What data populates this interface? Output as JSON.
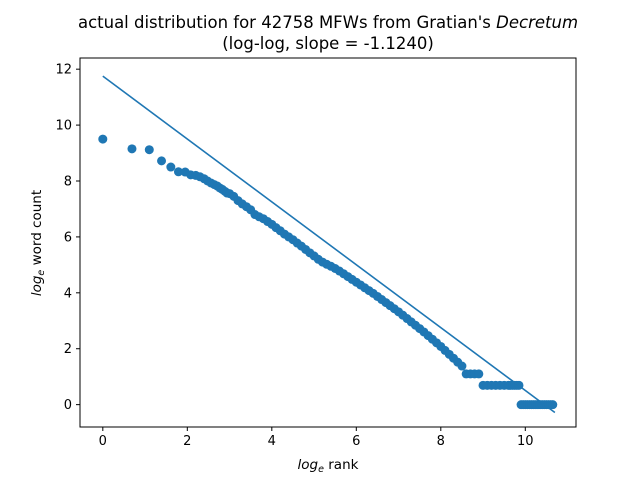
{
  "figure": {
    "title_line1_prefix": "actual distribution for 42758 MFWs from Gratian's ",
    "title_line1_italic": "Decretum",
    "title_line2": "(log-log, slope = -1.1240)",
    "xlabel_log": "log",
    "xlabel_sub": "e",
    "xlabel_rest": " rank",
    "ylabel_log": "log",
    "ylabel_sub": "e",
    "ylabel_rest": " word count"
  },
  "colors": {
    "series": "#1f77b4",
    "axes": "#000000",
    "background": "#ffffff"
  },
  "chart_data": {
    "type": "scatter",
    "title": "actual distribution for 42758 MFWs from Gratian's Decretum (log-log, slope = -1.1240)",
    "xlabel": "log_e rank",
    "ylabel": "log_e word count",
    "xlim": [
      -0.54,
      11.2
    ],
    "ylim": [
      -0.8,
      12.4
    ],
    "xticks": [
      0,
      2,
      4,
      6,
      8,
      10
    ],
    "yticks": [
      0,
      2,
      4,
      6,
      8,
      10,
      12
    ],
    "grid": false,
    "legend": "none",
    "series": [
      {
        "kind": "points",
        "x": [
          0,
          0.69,
          1.1,
          1.39,
          1.61,
          1.79,
          1.95,
          2.08,
          2.2,
          2.3,
          2.4,
          2.48,
          2.56,
          2.64,
          2.71,
          2.77,
          2.83,
          2.89,
          2.94,
          3.0,
          3.1,
          3.2,
          3.3,
          3.4,
          3.5,
          3.6,
          3.7,
          3.8,
          3.9,
          4.0,
          4.1,
          4.2,
          4.3,
          4.4,
          4.5,
          4.6,
          4.7,
          4.8,
          4.9,
          5.0,
          5.1,
          5.2,
          5.3,
          5.4,
          5.5,
          5.6,
          5.7,
          5.8,
          5.9,
          6.0,
          6.1,
          6.2,
          6.3,
          6.4,
          6.5,
          6.6,
          6.7,
          6.8,
          6.9,
          7.0,
          7.1,
          7.2,
          7.3,
          7.4,
          7.5,
          7.6,
          7.7,
          7.8,
          7.9,
          8.0,
          8.1,
          8.2,
          8.3,
          8.4,
          8.5,
          8.6,
          8.7,
          8.8,
          8.9,
          9.0,
          9.1,
          9.2,
          9.3,
          9.4,
          9.5,
          9.6,
          9.65,
          9.7,
          9.75,
          9.8,
          9.85,
          9.9,
          9.95,
          10.0,
          10.05,
          10.1,
          10.15,
          10.2,
          10.25,
          10.3,
          10.35,
          10.4,
          10.45,
          10.5,
          10.55,
          10.6,
          10.65
        ],
        "y": [
          9.5,
          9.15,
          9.12,
          8.72,
          8.5,
          8.33,
          8.32,
          8.22,
          8.2,
          8.15,
          8.08,
          8.0,
          7.93,
          7.87,
          7.82,
          7.75,
          7.7,
          7.63,
          7.57,
          7.55,
          7.45,
          7.3,
          7.18,
          7.08,
          6.97,
          6.8,
          6.72,
          6.65,
          6.55,
          6.45,
          6.33,
          6.22,
          6.1,
          6.0,
          5.9,
          5.78,
          5.67,
          5.55,
          5.43,
          5.32,
          5.2,
          5.1,
          5.02,
          4.95,
          4.87,
          4.78,
          4.68,
          4.58,
          4.48,
          4.38,
          4.28,
          4.18,
          4.08,
          3.98,
          3.87,
          3.76,
          3.65,
          3.54,
          3.43,
          3.32,
          3.2,
          3.08,
          2.96,
          2.84,
          2.72,
          2.6,
          2.47,
          2.34,
          2.21,
          2.08,
          1.94,
          1.8,
          1.66,
          1.52,
          1.38,
          1.1,
          1.1,
          1.1,
          1.1,
          0.69,
          0.69,
          0.69,
          0.69,
          0.69,
          0.69,
          0.69,
          0.69,
          0.69,
          0.69,
          0.69,
          0.69,
          0,
          0,
          0,
          0,
          0,
          0,
          0,
          0,
          0,
          0,
          0,
          0,
          0,
          0,
          0,
          0
        ]
      },
      {
        "kind": "fit-line",
        "x": [
          0,
          10.7
        ],
        "y": [
          11.75,
          -0.28
        ]
      }
    ]
  }
}
